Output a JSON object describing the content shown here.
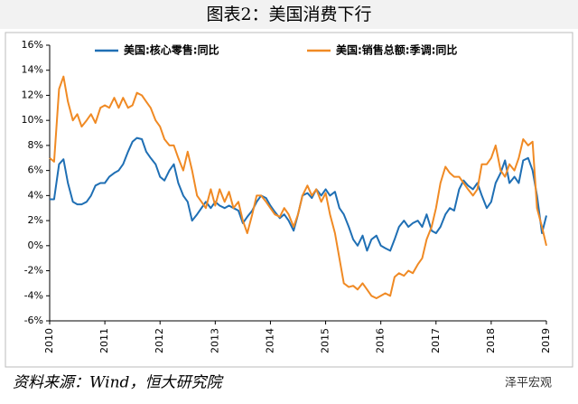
{
  "chart_data": {
    "type": "line",
    "title": "图表2：美国消费下行",
    "source": "资料来源：Wind，恒大研究院",
    "watermark": "泽平宏观",
    "x": [
      2010.0,
      2010.08,
      2010.17,
      2010.25,
      2010.33,
      2010.42,
      2010.5,
      2010.58,
      2010.67,
      2010.75,
      2010.83,
      2010.92,
      2011.0,
      2011.08,
      2011.17,
      2011.25,
      2011.33,
      2011.42,
      2011.5,
      2011.58,
      2011.67,
      2011.75,
      2011.83,
      2011.92,
      2012.0,
      2012.08,
      2012.17,
      2012.25,
      2012.33,
      2012.42,
      2012.5,
      2012.58,
      2012.67,
      2012.75,
      2012.83,
      2012.92,
      2013.0,
      2013.08,
      2013.17,
      2013.25,
      2013.33,
      2013.42,
      2013.5,
      2013.58,
      2013.67,
      2013.75,
      2013.83,
      2013.92,
      2014.0,
      2014.08,
      2014.17,
      2014.25,
      2014.33,
      2014.42,
      2014.5,
      2014.58,
      2014.67,
      2014.75,
      2014.83,
      2014.92,
      2015.0,
      2015.08,
      2015.17,
      2015.25,
      2015.33,
      2015.42,
      2015.5,
      2015.58,
      2015.67,
      2015.75,
      2015.83,
      2015.92,
      2016.0,
      2016.08,
      2016.17,
      2016.25,
      2016.33,
      2016.42,
      2016.5,
      2016.58,
      2016.67,
      2016.75,
      2016.83,
      2016.92,
      2017.0,
      2017.08,
      2017.17,
      2017.25,
      2017.33,
      2017.42,
      2017.5,
      2017.58,
      2017.67,
      2017.75,
      2017.83,
      2017.92,
      2018.0,
      2018.08,
      2018.17,
      2018.25,
      2018.33,
      2018.42,
      2018.5,
      2018.58,
      2018.67,
      2018.75,
      2018.83,
      2018.92,
      2019.0
    ],
    "series": [
      {
        "name": "美国:核心零售:同比",
        "color": "#1f6fb4",
        "values": [
          3.7,
          3.7,
          6.5,
          6.9,
          5.0,
          3.5,
          3.3,
          3.3,
          3.5,
          4.0,
          4.8,
          5.0,
          5.0,
          5.5,
          5.8,
          6.0,
          6.5,
          7.5,
          8.3,
          8.6,
          8.5,
          7.5,
          7.0,
          6.5,
          5.5,
          5.2,
          6.0,
          6.5,
          5.0,
          4.0,
          3.5,
          2.0,
          2.5,
          3.0,
          3.5,
          3.0,
          3.5,
          3.2,
          3.0,
          3.2,
          3.0,
          2.8,
          1.8,
          2.3,
          2.8,
          3.5,
          4.0,
          3.8,
          3.2,
          2.7,
          2.2,
          2.5,
          2.0,
          1.2,
          2.5,
          4.0,
          4.2,
          3.8,
          4.5,
          4.0,
          4.5,
          4.0,
          4.3,
          3.0,
          2.5,
          1.5,
          0.5,
          0.0,
          0.8,
          -0.4,
          0.5,
          0.8,
          0.0,
          -0.2,
          -0.4,
          0.5,
          1.5,
          2.0,
          1.5,
          1.8,
          2.0,
          1.5,
          2.5,
          1.2,
          1.0,
          1.5,
          2.5,
          3.0,
          2.8,
          4.5,
          5.2,
          4.8,
          4.5,
          5.0,
          4.0,
          3.0,
          3.5,
          5.0,
          5.8,
          6.8,
          5.0,
          5.5,
          5.0,
          6.8,
          7.0,
          6.0,
          4.0,
          1.0,
          2.4
        ]
      },
      {
        "name": "美国:销售总额:季调:同比",
        "color": "#f08a24",
        "values": [
          7.0,
          6.7,
          12.5,
          13.5,
          11.5,
          10.0,
          10.5,
          9.5,
          10.0,
          10.5,
          9.8,
          11.0,
          11.2,
          11.0,
          11.8,
          11.0,
          11.8,
          11.0,
          11.2,
          12.2,
          12.0,
          11.5,
          11.0,
          10.0,
          9.5,
          8.5,
          8.0,
          8.0,
          7.0,
          6.0,
          7.5,
          6.0,
          4.0,
          3.5,
          3.0,
          4.5,
          3.2,
          4.5,
          3.5,
          4.3,
          3.0,
          3.5,
          2.0,
          1.0,
          2.5,
          4.0,
          4.0,
          3.5,
          3.0,
          2.5,
          2.3,
          3.0,
          2.5,
          1.5,
          2.5,
          4.0,
          4.8,
          4.0,
          4.5,
          3.5,
          4.2,
          2.5,
          1.0,
          -1.0,
          -3.0,
          -3.3,
          -3.2,
          -3.5,
          -3.0,
          -3.5,
          -4.0,
          -4.2,
          -4.0,
          -3.8,
          -4.0,
          -2.5,
          -2.2,
          -2.4,
          -2.0,
          -2.2,
          -1.5,
          -1.0,
          0.5,
          1.5,
          3.0,
          5.0,
          6.3,
          5.8,
          5.5,
          5.5,
          5.0,
          4.5,
          4.0,
          4.5,
          6.5,
          6.5,
          7.0,
          8.0,
          6.0,
          5.5,
          6.5,
          6.0,
          7.0,
          8.5,
          8.0,
          8.3,
          3.0,
          1.5,
          0.0
        ]
      }
    ],
    "xlim": [
      2010,
      2019
    ],
    "xticks": [
      2010,
      2011,
      2012,
      2013,
      2014,
      2015,
      2016,
      2017,
      2018,
      2019
    ],
    "ylim": [
      -6,
      16
    ],
    "yticks": [
      {
        "value": -6,
        "label": "-6%"
      },
      {
        "value": -4,
        "label": "-4%"
      },
      {
        "value": -2,
        "label": "-2%"
      },
      {
        "value": 0,
        "label": "0%"
      },
      {
        "value": 2,
        "label": "2%"
      },
      {
        "value": 4,
        "label": "4%"
      },
      {
        "value": 6,
        "label": "6%"
      },
      {
        "value": 8,
        "label": "8%"
      },
      {
        "value": 10,
        "label": "10%"
      },
      {
        "value": 12,
        "label": "12%"
      },
      {
        "value": 14,
        "label": "14%"
      },
      {
        "value": 16,
        "label": "16%"
      }
    ],
    "grid": false,
    "legend": "top"
  }
}
